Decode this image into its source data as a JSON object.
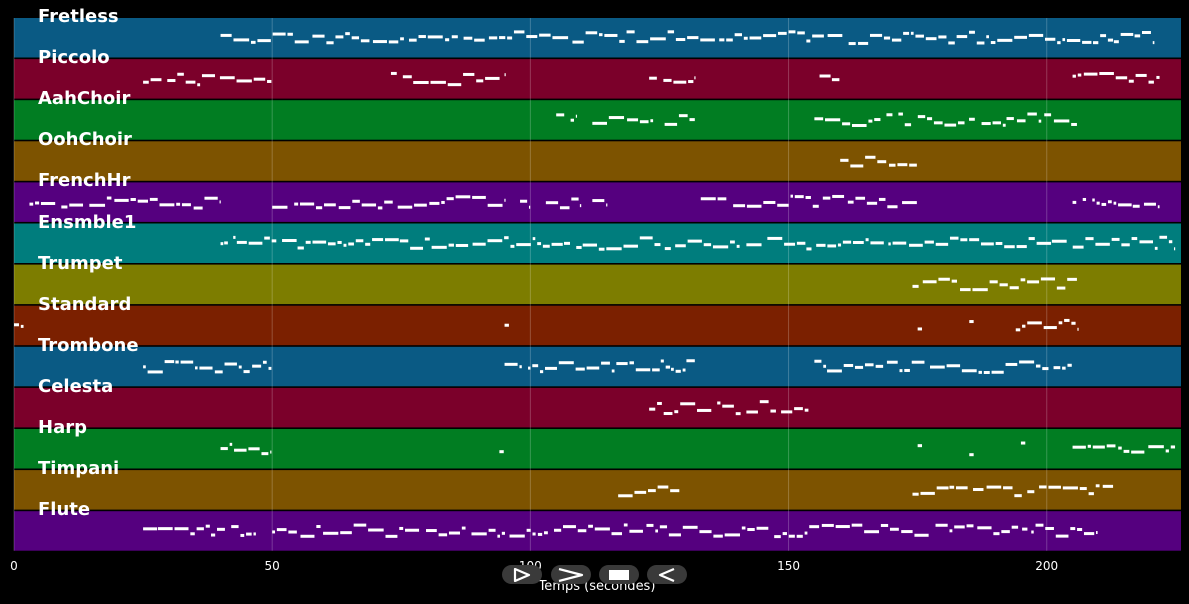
{
  "tracks": [
    {
      "name": "Fretless",
      "color": "#0a5a84"
    },
    {
      "name": "Piccolo",
      "color": "#7b002a"
    },
    {
      "name": "AahChoir",
      "color": "#017d22"
    },
    {
      "name": "OohChoir",
      "color": "#7d5300"
    },
    {
      "name": "FrenchHr",
      "color": "#55007f"
    },
    {
      "name": "Ensmble1",
      "color": "#007d7d"
    },
    {
      "name": "Trumpet",
      "color": "#7d7d00"
    },
    {
      "name": "Standard",
      "color": "#7b2000"
    },
    {
      "name": "Trombone",
      "color": "#0a5a84"
    },
    {
      "name": "Celesta",
      "color": "#7b002a"
    },
    {
      "name": "Harp",
      "color": "#017d22"
    },
    {
      "name": "Timpani",
      "color": "#7d5300"
    },
    {
      "name": "Flute",
      "color": "#55007f"
    }
  ],
  "axis": {
    "xlabel": "Temps (secondes)",
    "xlim": [
      0,
      226
    ],
    "ticks": [
      "0",
      "50",
      "100",
      "150",
      "200"
    ],
    "tick_values": [
      0,
      50,
      100,
      150,
      200
    ]
  },
  "controls": {
    "play_icon": "play-icon",
    "forward_icon": "fast-forward-icon",
    "stop_icon": "stop-icon",
    "back_icon": "rewind-icon"
  },
  "notes": {
    "Fretless": [
      [
        40,
        213
      ],
      [
        213,
        221
      ]
    ],
    "Piccolo": [
      [
        25,
        50
      ],
      [
        73,
        95
      ],
      [
        123,
        132
      ],
      [
        156,
        160
      ],
      [
        205,
        222
      ]
    ],
    "AahChoir": [
      [
        105,
        109
      ],
      [
        112,
        124
      ],
      [
        126,
        132
      ],
      [
        155,
        206
      ]
    ],
    "OohChoir": [
      [
        160,
        175
      ]
    ],
    "FrenchHr": [
      [
        3,
        40
      ],
      [
        50,
        95
      ],
      [
        98,
        100
      ],
      [
        103,
        110
      ],
      [
        112,
        115
      ],
      [
        133,
        175
      ],
      [
        205,
        222
      ]
    ],
    "Ensmble1": [
      [
        40,
        225
      ]
    ],
    "Trumpet": [
      [
        174,
        206
      ]
    ],
    "Standard": [
      [
        0,
        2
      ],
      [
        95,
        96
      ],
      [
        175,
        176
      ],
      [
        185,
        186
      ],
      [
        194,
        206
      ]
    ],
    "Trombone": [
      [
        25,
        50
      ],
      [
        95,
        132
      ],
      [
        155,
        205
      ]
    ],
    "Celesta": [
      [
        123,
        154
      ]
    ],
    "Harp": [
      [
        40,
        50
      ],
      [
        94,
        95
      ],
      [
        175,
        176
      ],
      [
        185,
        186
      ],
      [
        195,
        196
      ],
      [
        205,
        225
      ]
    ],
    "Timpani": [
      [
        117,
        129
      ],
      [
        174,
        213
      ]
    ],
    "Flute": [
      [
        25,
        47
      ],
      [
        50,
        210
      ]
    ]
  }
}
